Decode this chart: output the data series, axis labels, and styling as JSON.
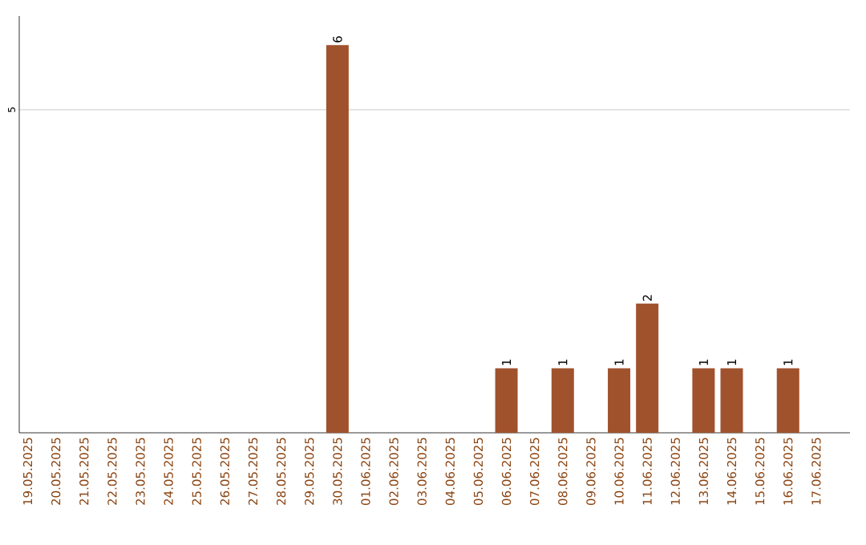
{
  "chart_data": {
    "type": "bar",
    "categories": [
      "19.05.2025",
      "20.05.2025",
      "21.05.2025",
      "22.05.2025",
      "23.05.2025",
      "24.05.2025",
      "25.05.2025",
      "26.05.2025",
      "27.05.2025",
      "28.05.2025",
      "29.05.2025",
      "30.05.2025",
      "01.06.2025",
      "02.06.2025",
      "03.06.2025",
      "04.06.2025",
      "05.06.2025",
      "06.06.2025",
      "07.06.2025",
      "08.06.2025",
      "09.06.2025",
      "10.06.2025",
      "11.06.2025",
      "12.06.2025",
      "13.06.2025",
      "14.06.2025",
      "15.06.2025",
      "16.06.2025",
      "17.06.2025"
    ],
    "values": [
      0,
      0,
      0,
      0,
      0,
      0,
      0,
      0,
      0,
      0,
      0,
      6,
      0,
      0,
      0,
      0,
      0,
      1,
      0,
      1,
      0,
      1,
      2,
      0,
      1,
      1,
      0,
      1,
      0
    ],
    "value_labels": [
      null,
      null,
      null,
      null,
      null,
      null,
      null,
      null,
      null,
      null,
      null,
      "6",
      null,
      null,
      null,
      null,
      null,
      "1",
      null,
      "1",
      null,
      "1",
      "2",
      null,
      "1",
      "1",
      null,
      "1",
      null
    ],
    "color": "#a0522d",
    "ylim": [
      0,
      6.45
    ],
    "yticks": [
      5
    ],
    "grid": "y"
  }
}
